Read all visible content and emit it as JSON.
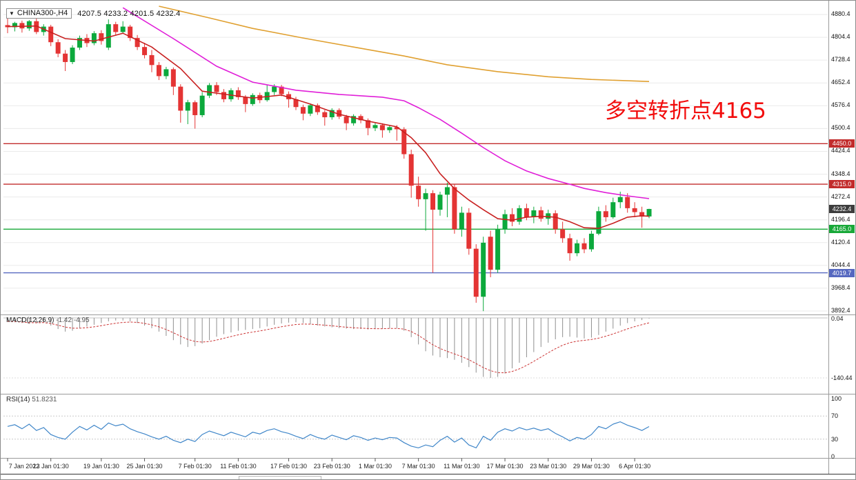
{
  "header": {
    "icon": "▼",
    "symbol": "CHINA300-,H4",
    "ohlc": "4207.5 4233.2 4201.5 4232.4"
  },
  "annotation": {
    "text": "多空转折点4165",
    "color": "#f20d0d"
  },
  "panels": {
    "macd": {
      "label": "MACD(12,26,9)",
      "values": "-1.42 -4.95"
    },
    "rsi": {
      "label": "RSI(14)",
      "value": "51.8231"
    }
  },
  "axis": {
    "price_labels": [
      "4880.4",
      "4804.4",
      "4728.4",
      "4652.4",
      "4576.4",
      "4500.4",
      "4424.4",
      "4348.4",
      "4272.4",
      "4196.4",
      "4120.4",
      "4044.4",
      "3968.4",
      "3892.4"
    ],
    "dates": [
      {
        "i": 0,
        "label": "7 Jan 2022"
      },
      {
        "i": 6,
        "label": "13 Jan 01:30"
      },
      {
        "i": 13,
        "label": "19 Jan 01:30"
      },
      {
        "i": 19,
        "label": "25 Jan 01:30"
      },
      {
        "i": 26,
        "label": "7 Feb 01:30"
      },
      {
        "i": 32,
        "label": "11 Feb 01:30"
      },
      {
        "i": 39,
        "label": "17 Feb 01:30"
      },
      {
        "i": 45,
        "label": "23 Feb 01:30"
      },
      {
        "i": 51,
        "label": "1 Mar 01:30"
      },
      {
        "i": 57,
        "label": "7 Mar 01:30"
      },
      {
        "i": 63,
        "label": "11 Mar 01:30"
      },
      {
        "i": 69,
        "label": "17 Mar 01:30"
      },
      {
        "i": 75,
        "label": "23 Mar 01:30"
      },
      {
        "i": 81,
        "label": "29 Mar 01:30"
      },
      {
        "i": 87,
        "label": "6 Apr 01:30"
      }
    ]
  },
  "chart_data": {
    "type": "candlestick",
    "title": "CHINA300-,H4",
    "timeframe": "H4",
    "current": {
      "open": 4207.5,
      "high": 4233.2,
      "low": 4201.5,
      "close": 4232.4
    },
    "y_axis": {
      "min": 3892.4,
      "max": 4880.4,
      "grid_step": 76
    },
    "colors": {
      "up": "#0ca93c",
      "down": "#e43434",
      "grid": "#eaeaea",
      "separator": "#9a9a9a",
      "macd_hist": "#8f8f8f",
      "macd_signal": "#cc3333",
      "rsi_line": "#3f86c9",
      "level_dotted": "#c8c8c8",
      "background": "#ffffff"
    },
    "candles": [
      [
        4845,
        4872,
        4818,
        4838
      ],
      [
        4838,
        4856,
        4824,
        4852
      ],
      [
        4852,
        4860,
        4820,
        4834
      ],
      [
        4834,
        4862,
        4826,
        4858
      ],
      [
        4858,
        4874,
        4815,
        4822
      ],
      [
        4822,
        4848,
        4810,
        4840
      ],
      [
        4840,
        4846,
        4775,
        4788
      ],
      [
        4788,
        4798,
        4738,
        4750
      ],
      [
        4750,
        4762,
        4692,
        4722
      ],
      [
        4722,
        4778,
        4715,
        4770
      ],
      [
        4770,
        4810,
        4762,
        4802
      ],
      [
        4802,
        4815,
        4772,
        4785
      ],
      [
        4785,
        4825,
        4778,
        4818
      ],
      [
        4818,
        4828,
        4780,
        4792
      ],
      [
        4770,
        4864,
        4762,
        4848
      ],
      [
        4848,
        4856,
        4812,
        4822
      ],
      [
        4822,
        4858,
        4816,
        4840
      ],
      [
        4840,
        4846,
        4792,
        4802
      ],
      [
        4802,
        4812,
        4762,
        4772
      ],
      [
        4772,
        4786,
        4734,
        4745
      ],
      [
        4745,
        4762,
        4688,
        4712
      ],
      [
        4712,
        4722,
        4662,
        4675
      ],
      [
        4675,
        4706,
        4665,
        4698
      ],
      [
        4698,
        4704,
        4612,
        4640
      ],
      [
        4640,
        4648,
        4520,
        4560
      ],
      [
        4560,
        4596,
        4515,
        4588
      ],
      [
        4588,
        4594,
        4500,
        4545
      ],
      [
        4545,
        4622,
        4538,
        4610
      ],
      [
        4610,
        4652,
        4602,
        4645
      ],
      [
        4645,
        4655,
        4612,
        4622
      ],
      [
        4622,
        4632,
        4588,
        4598
      ],
      [
        4598,
        4635,
        4590,
        4628
      ],
      [
        4628,
        4638,
        4596,
        4605
      ],
      [
        4605,
        4612,
        4555,
        4582
      ],
      [
        4582,
        4618,
        4576,
        4612
      ],
      [
        4612,
        4620,
        4585,
        4595
      ],
      [
        4595,
        4645,
        4590,
        4622
      ],
      [
        4622,
        4648,
        4612,
        4640
      ],
      [
        4640,
        4646,
        4608,
        4615
      ],
      [
        4615,
        4624,
        4570,
        4598
      ],
      [
        4598,
        4606,
        4562,
        4572
      ],
      [
        4572,
        4580,
        4528,
        4550
      ],
      [
        4550,
        4584,
        4542,
        4578
      ],
      [
        4578,
        4584,
        4546,
        4555
      ],
      [
        4555,
        4562,
        4510,
        4538
      ],
      [
        4538,
        4568,
        4530,
        4562
      ],
      [
        4562,
        4568,
        4532,
        4540
      ],
      [
        4540,
        4546,
        4495,
        4518
      ],
      [
        4518,
        4548,
        4510,
        4542
      ],
      [
        4542,
        4548,
        4518,
        4528
      ],
      [
        4528,
        4534,
        4478,
        4502
      ],
      [
        4502,
        4520,
        4492,
        4512
      ],
      [
        4512,
        4518,
        4470,
        4495
      ],
      [
        4495,
        4512,
        4486,
        4505
      ],
      [
        4505,
        4512,
        4460,
        4498
      ],
      [
        4498,
        4505,
        4400,
        4415
      ],
      [
        4415,
        4430,
        4270,
        4310
      ],
      [
        4310,
        4340,
        4240,
        4265
      ],
      [
        4265,
        4300,
        4160,
        4285
      ],
      [
        4285,
        4295,
        4020,
        4230
      ],
      [
        4230,
        4290,
        4210,
        4280
      ],
      [
        4280,
        4320,
        4205,
        4305
      ],
      [
        4305,
        4315,
        4150,
        4165
      ],
      [
        4165,
        4240,
        4140,
        4220
      ],
      [
        4220,
        4235,
        4080,
        4100
      ],
      [
        4100,
        4115,
        3920,
        3940
      ],
      [
        3940,
        4140,
        3892,
        4120
      ],
      [
        4140,
        4160,
        4005,
        4030
      ],
      [
        4030,
        4180,
        4020,
        4165
      ],
      [
        4165,
        4230,
        4150,
        4215
      ],
      [
        4215,
        4235,
        4175,
        4190
      ],
      [
        4190,
        4245,
        4180,
        4235
      ],
      [
        4235,
        4250,
        4195,
        4205
      ],
      [
        4205,
        4240,
        4185,
        4228
      ],
      [
        4228,
        4240,
        4190,
        4200
      ],
      [
        4200,
        4230,
        4180,
        4218
      ],
      [
        4218,
        4228,
        4150,
        4165
      ],
      [
        4165,
        4190,
        4120,
        4135
      ],
      [
        4135,
        4150,
        4060,
        4085
      ],
      [
        4085,
        4130,
        4075,
        4118
      ],
      [
        4118,
        4135,
        4085,
        4098
      ],
      [
        4098,
        4160,
        4090,
        4150
      ],
      [
        4150,
        4240,
        4145,
        4225
      ],
      [
        4225,
        4245,
        4190,
        4205
      ],
      [
        4205,
        4270,
        4200,
        4255
      ],
      [
        4255,
        4290,
        4235,
        4272
      ],
      [
        4272,
        4285,
        4220,
        4235
      ],
      [
        4235,
        4255,
        4205,
        4222
      ],
      [
        4222,
        4240,
        4170,
        4207
      ],
      [
        4207.5,
        4233.2,
        4201.5,
        4232.4
      ]
    ],
    "ma": [
      {
        "name": "fast-red",
        "color": "#c82020",
        "points": [
          [
            0,
            4840
          ],
          [
            4,
            4842
          ],
          [
            8,
            4800
          ],
          [
            12,
            4792
          ],
          [
            16,
            4818
          ],
          [
            20,
            4772
          ],
          [
            24,
            4700
          ],
          [
            27,
            4625
          ],
          [
            30,
            4615
          ],
          [
            34,
            4602
          ],
          [
            38,
            4612
          ],
          [
            42,
            4582
          ],
          [
            46,
            4548
          ],
          [
            50,
            4525
          ],
          [
            54,
            4506
          ],
          [
            56,
            4470
          ],
          [
            58,
            4420
          ],
          [
            60,
            4350
          ],
          [
            62,
            4300
          ],
          [
            64,
            4262
          ],
          [
            66,
            4230
          ],
          [
            68,
            4200
          ],
          [
            70,
            4195
          ],
          [
            72,
            4205
          ],
          [
            74,
            4208
          ],
          [
            76,
            4205
          ],
          [
            78,
            4190
          ],
          [
            80,
            4170
          ],
          [
            82,
            4168
          ],
          [
            84,
            4185
          ],
          [
            86,
            4205
          ],
          [
            88,
            4210
          ],
          [
            89,
            4208
          ]
        ]
      },
      {
        "name": "mid-magenta",
        "color": "#e01ed8",
        "points": [
          [
            16,
            4903
          ],
          [
            23,
            4800
          ],
          [
            29,
            4708
          ],
          [
            34,
            4655
          ],
          [
            40,
            4628
          ],
          [
            46,
            4614
          ],
          [
            52,
            4605
          ],
          [
            55,
            4593
          ],
          [
            57,
            4570
          ],
          [
            60,
            4531
          ],
          [
            63,
            4485
          ],
          [
            66,
            4437
          ],
          [
            69,
            4393
          ],
          [
            72,
            4359
          ],
          [
            75,
            4334
          ],
          [
            78,
            4315
          ],
          [
            80,
            4301
          ],
          [
            83,
            4287
          ],
          [
            86,
            4276
          ],
          [
            89,
            4267
          ]
        ]
      },
      {
        "name": "slow-orange",
        "color": "#e0a030",
        "points": [
          [
            21,
            4908
          ],
          [
            28,
            4869
          ],
          [
            34,
            4834
          ],
          [
            41,
            4802
          ],
          [
            48,
            4772
          ],
          [
            55,
            4742
          ],
          [
            61,
            4713
          ],
          [
            68,
            4690
          ],
          [
            75,
            4673
          ],
          [
            81,
            4664
          ],
          [
            89,
            4657
          ]
        ]
      }
    ],
    "hlines": [
      {
        "price": 4450.0,
        "label": "4450.0",
        "color": "#c22b2b"
      },
      {
        "price": 4315.0,
        "label": "4315.0",
        "color": "#c22b2b"
      },
      {
        "price": 4165.0,
        "label": "4165.0",
        "color": "#18a838"
      },
      {
        "price": 4019.7,
        "label": "4019.7",
        "color": "#5668c0"
      }
    ],
    "price_badge": {
      "price": 4232.4,
      "label": "4232.4",
      "bg": "#3d3d3d"
    },
    "macd": {
      "scale_top": "0.04",
      "scale_bottom": "-140.44",
      "min": -140.44,
      "hist": [
        -8,
        -10,
        -12,
        -14,
        -12,
        -10,
        -18,
        -26,
        -32,
        -30,
        -24,
        -20,
        -16,
        -12,
        -8,
        -6,
        -6,
        -8,
        -12,
        -18,
        -24,
        -32,
        -42,
        -52,
        -62,
        -68,
        -66,
        -60,
        -52,
        -44,
        -38,
        -34,
        -30,
        -28,
        -26,
        -24,
        -20,
        -16,
        -13,
        -11,
        -10,
        -12,
        -15,
        -18,
        -20,
        -22,
        -24,
        -25,
        -26,
        -26,
        -27,
        -26,
        -25,
        -24,
        -24,
        -30,
        -45,
        -62,
        -78,
        -88,
        -92,
        -94,
        -98,
        -105,
        -115,
        -128,
        -138,
        -140.44,
        -138,
        -130,
        -118,
        -105,
        -92,
        -80,
        -68,
        -58,
        -50,
        -45,
        -44,
        -46,
        -48,
        -46,
        -40,
        -32,
        -25,
        -18,
        -12,
        -8,
        -5,
        -1.42
      ]
    },
    "rsi": {
      "levels": [
        70,
        30
      ],
      "scale": [
        "100",
        "70",
        "30",
        "0"
      ],
      "values": [
        52,
        55,
        48,
        56,
        45,
        50,
        38,
        33,
        30,
        42,
        52,
        46,
        54,
        47,
        58,
        53,
        56,
        48,
        43,
        39,
        34,
        30,
        35,
        28,
        24,
        30,
        26,
        38,
        44,
        40,
        36,
        42,
        38,
        34,
        42,
        39,
        45,
        48,
        43,
        40,
        35,
        31,
        38,
        33,
        30,
        37,
        33,
        29,
        36,
        33,
        28,
        32,
        29,
        33,
        32,
        24,
        18,
        15,
        20,
        17,
        28,
        35,
        25,
        32,
        20,
        15,
        35,
        28,
        42,
        48,
        44,
        50,
        46,
        49,
        45,
        48,
        40,
        34,
        27,
        33,
        30,
        38,
        52,
        48,
        56,
        60,
        54,
        50,
        45,
        51.8
      ]
    }
  }
}
